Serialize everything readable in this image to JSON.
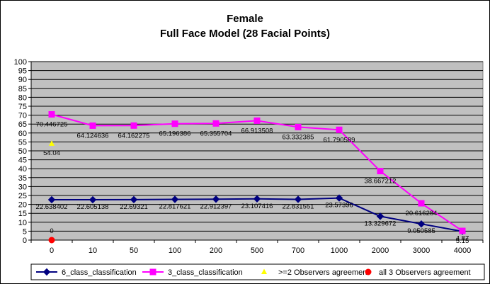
{
  "chart_data": {
    "type": "line",
    "title": "Female",
    "subtitle": "Full Face Model (28 Facial Points)",
    "categories": [
      "0",
      "10",
      "50",
      "100",
      "200",
      "500",
      "700",
      "1000",
      "2000",
      "3000",
      "4000"
    ],
    "ylim": [
      0,
      100
    ],
    "yticks": [
      0,
      5,
      10,
      15,
      20,
      25,
      30,
      35,
      40,
      45,
      50,
      55,
      60,
      65,
      70,
      75,
      80,
      85,
      90,
      95,
      100
    ],
    "grid": true,
    "plot_background": "#c0c0c0",
    "legend_position": "bottom",
    "series": [
      {
        "name": "6_class_classification",
        "color": "#000080",
        "marker": "diamond",
        "values": [
          22.638402,
          22.605138,
          22.69321,
          22.817621,
          22.912397,
          23.107416,
          22.831551,
          23.57396,
          13.329672,
          9.050585,
          4.87
        ],
        "labels": [
          "22.638402",
          "22.605138",
          "22.69321",
          "22.817621",
          "22.912397",
          "23.107416",
          "22.831551",
          "23.57396",
          "13.329672",
          "9.050585",
          "4.87"
        ]
      },
      {
        "name": "3_class_classification",
        "color": "#ff00ff",
        "marker": "square",
        "values": [
          70.446725,
          64.124636,
          64.162275,
          65.196386,
          65.355704,
          66.913508,
          63.332385,
          61.790589,
          38.667212,
          20.616284,
          5.15
        ],
        "labels": [
          "70.446725",
          "64.124636",
          "64.162275",
          "65.196386",
          "65.355704",
          "66.913508",
          "63.332385",
          "61.790589",
          "38.667212",
          "20.616284",
          "5.15"
        ]
      },
      {
        "name": ">=2 Observers agreement",
        "color": "#ffff00",
        "marker": "triangle",
        "values": [
          54.04,
          null,
          null,
          null,
          null,
          null,
          null,
          null,
          null,
          null,
          null
        ],
        "labels": [
          "54.04"
        ]
      },
      {
        "name": "all 3 Observers agreement",
        "color": "#ff0000",
        "marker": "circle",
        "values": [
          0,
          null,
          null,
          null,
          null,
          null,
          null,
          null,
          null,
          null,
          null
        ],
        "labels": [
          "0"
        ]
      }
    ]
  }
}
